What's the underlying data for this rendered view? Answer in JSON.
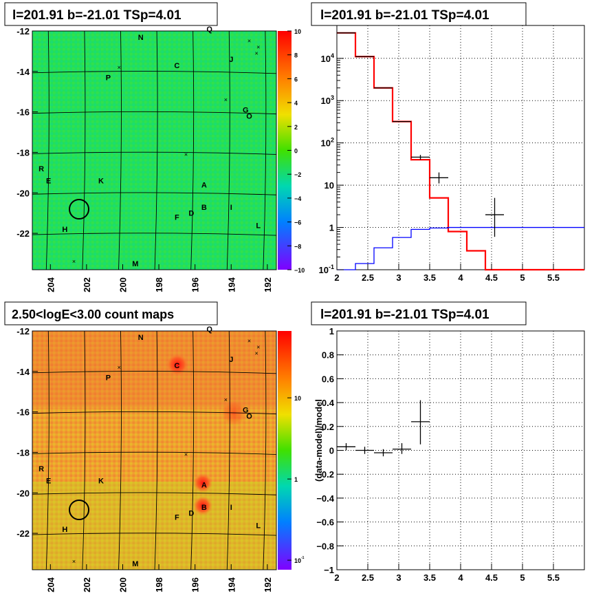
{
  "panels": {
    "top_left_title": "l=201.91 b=-21.01 TSp=4.01",
    "top_right_title": "l=201.91 b=-21.01 TSp=4.01",
    "bottom_left_title": "2.50<logE<3.00 count maps",
    "bottom_right_title": "l=201.91 b=-21.01 TSp=4.01"
  },
  "chart_data": [
    {
      "type": "heatmap",
      "title": "l=201.91 b=-21.01 TSp=4.01",
      "x_ticks": [
        "204",
        "202",
        "200",
        "198",
        "196",
        "194",
        "192"
      ],
      "y_ticks": [
        "-12",
        "-14",
        "-16",
        "-18",
        "-20",
        "-22"
      ],
      "xlim": [
        191.5,
        205
      ],
      "ylim": [
        -23.8,
        -12
      ],
      "colorbar_ticks": [
        "10",
        "8",
        "6",
        "4",
        "2",
        "0",
        "−2",
        "−4",
        "−6",
        "−8",
        "−10"
      ],
      "zlim": [
        -10,
        10
      ],
      "source_labels": [
        {
          "text": "N",
          "l": 199.0,
          "b": -12.3
        },
        {
          "text": "Q",
          "l": 195.2,
          "b": -11.9
        },
        {
          "text": "C",
          "l": 197.0,
          "b": -13.7
        },
        {
          "text": "J",
          "l": 194.0,
          "b": -13.4
        },
        {
          "text": "P",
          "l": 200.8,
          "b": -14.3
        },
        {
          "text": "G",
          "l": 193.2,
          "b": -15.9
        },
        {
          "text": "O",
          "l": 193.0,
          "b": -16.2
        },
        {
          "text": "R",
          "l": 204.5,
          "b": -18.8
        },
        {
          "text": "E",
          "l": 204.1,
          "b": -19.4
        },
        {
          "text": "K",
          "l": 201.2,
          "b": -19.4
        },
        {
          "text": "A",
          "l": 195.5,
          "b": -19.6
        },
        {
          "text": "B",
          "l": 195.5,
          "b": -20.7
        },
        {
          "text": "D",
          "l": 196.2,
          "b": -21.0
        },
        {
          "text": "F",
          "l": 197.0,
          "b": -21.2
        },
        {
          "text": "I",
          "l": 194.0,
          "b": -20.7
        },
        {
          "text": "H",
          "l": 203.2,
          "b": -21.8
        },
        {
          "text": "L",
          "l": 192.5,
          "b": -21.6
        },
        {
          "text": "M",
          "l": 199.3,
          "b": -23.5
        }
      ]
    },
    {
      "type": "line",
      "title": "l=201.91 b=-21.01 TSp=4.01",
      "x_ticks": [
        "2",
        "2.5",
        "3",
        "3.5",
        "4",
        "4.5",
        "5",
        "5.5"
      ],
      "y_ticks": [
        "10-1",
        "1",
        "10",
        "102",
        "103",
        "104"
      ],
      "xlim": [
        2,
        6
      ],
      "ylim": [
        0.1,
        60000
      ],
      "yscale": "log",
      "series": [
        {
          "color": "#ff0000",
          "bins": [
            [
              2,
              2.3,
              40000
            ],
            [
              2.3,
              2.6,
              11000
            ],
            [
              2.6,
              2.9,
              2000
            ],
            [
              2.9,
              3.2,
              320
            ],
            [
              3.2,
              3.5,
              40
            ],
            [
              3.5,
              3.8,
              5
            ],
            [
              3.8,
              4.1,
              0.8
            ],
            [
              4.1,
              4.4,
              0.28
            ],
            [
              4.4,
              6,
              0.1
            ]
          ]
        },
        {
          "color": "#0000ff",
          "bins": [
            [
              2,
              2.3,
              0.1
            ],
            [
              2.3,
              2.6,
              0.14
            ],
            [
              2.6,
              2.9,
              0.33
            ],
            [
              2.9,
              3.2,
              0.58
            ],
            [
              3.2,
              3.5,
              0.9
            ],
            [
              3.5,
              3.8,
              0.97
            ],
            [
              3.8,
              6,
              1.0
            ]
          ]
        },
        {
          "color": "#000000",
          "points": [
            [
              2.15,
              40000,
              2.0,
              2.3,
              0,
              0
            ],
            [
              2.45,
              11000,
              2.3,
              2.6,
              0,
              0
            ],
            [
              2.75,
              2000,
              2.6,
              2.9,
              0,
              0
            ],
            [
              3.05,
              320,
              2.9,
              3.2,
              0,
              0
            ],
            [
              3.35,
              46,
              3.2,
              3.5,
              40,
              52
            ],
            [
              3.65,
              15,
              3.5,
              3.8,
              11,
              20
            ],
            [
              4.55,
              2,
              4.4,
              4.7,
              0.6,
              5
            ]
          ]
        }
      ]
    },
    {
      "type": "heatmap",
      "title": "2.50<logE<3.00 count maps",
      "x_ticks": [
        "204",
        "202",
        "200",
        "198",
        "196",
        "194",
        "192"
      ],
      "y_ticks": [
        "-12",
        "-14",
        "-16",
        "-18",
        "-20",
        "-22"
      ],
      "xlim": [
        191.5,
        205
      ],
      "ylim": [
        -23.8,
        -12
      ],
      "zscale": "log",
      "colorbar_ticks": [
        "10",
        "1",
        "10-1"
      ],
      "zlim": [
        0.05,
        40
      ]
    },
    {
      "type": "scatter",
      "title": "l=201.91 b=-21.01 TSp=4.01",
      "ylabel": "(data-model)/model",
      "x_ticks": [
        "2",
        "2.5",
        "3",
        "3.5",
        "4",
        "4.5",
        "5",
        "5.5"
      ],
      "y_ticks": [
        "1",
        "0.8",
        "0.6",
        "0.4",
        "0.2",
        "0",
        "−0.2",
        "−0.4",
        "−0.6",
        "−0.8",
        "−1"
      ],
      "xlim": [
        2,
        6
      ],
      "ylim": [
        -1,
        1
      ],
      "points": [
        {
          "x": 2.15,
          "y": 0.03,
          "xlo": 2.0,
          "xhi": 2.3,
          "ylo": 0.0,
          "yhi": 0.06
        },
        {
          "x": 2.45,
          "y": 0.0,
          "xlo": 2.3,
          "xhi": 2.6,
          "ylo": -0.03,
          "yhi": 0.03
        },
        {
          "x": 2.75,
          "y": -0.02,
          "xlo": 2.6,
          "xhi": 2.9,
          "ylo": -0.05,
          "yhi": 0.01
        },
        {
          "x": 3.05,
          "y": 0.01,
          "xlo": 2.9,
          "xhi": 3.2,
          "ylo": -0.03,
          "yhi": 0.06
        },
        {
          "x": 3.35,
          "y": 0.24,
          "xlo": 3.2,
          "xhi": 3.5,
          "ylo": 0.05,
          "yhi": 0.42
        }
      ]
    }
  ]
}
